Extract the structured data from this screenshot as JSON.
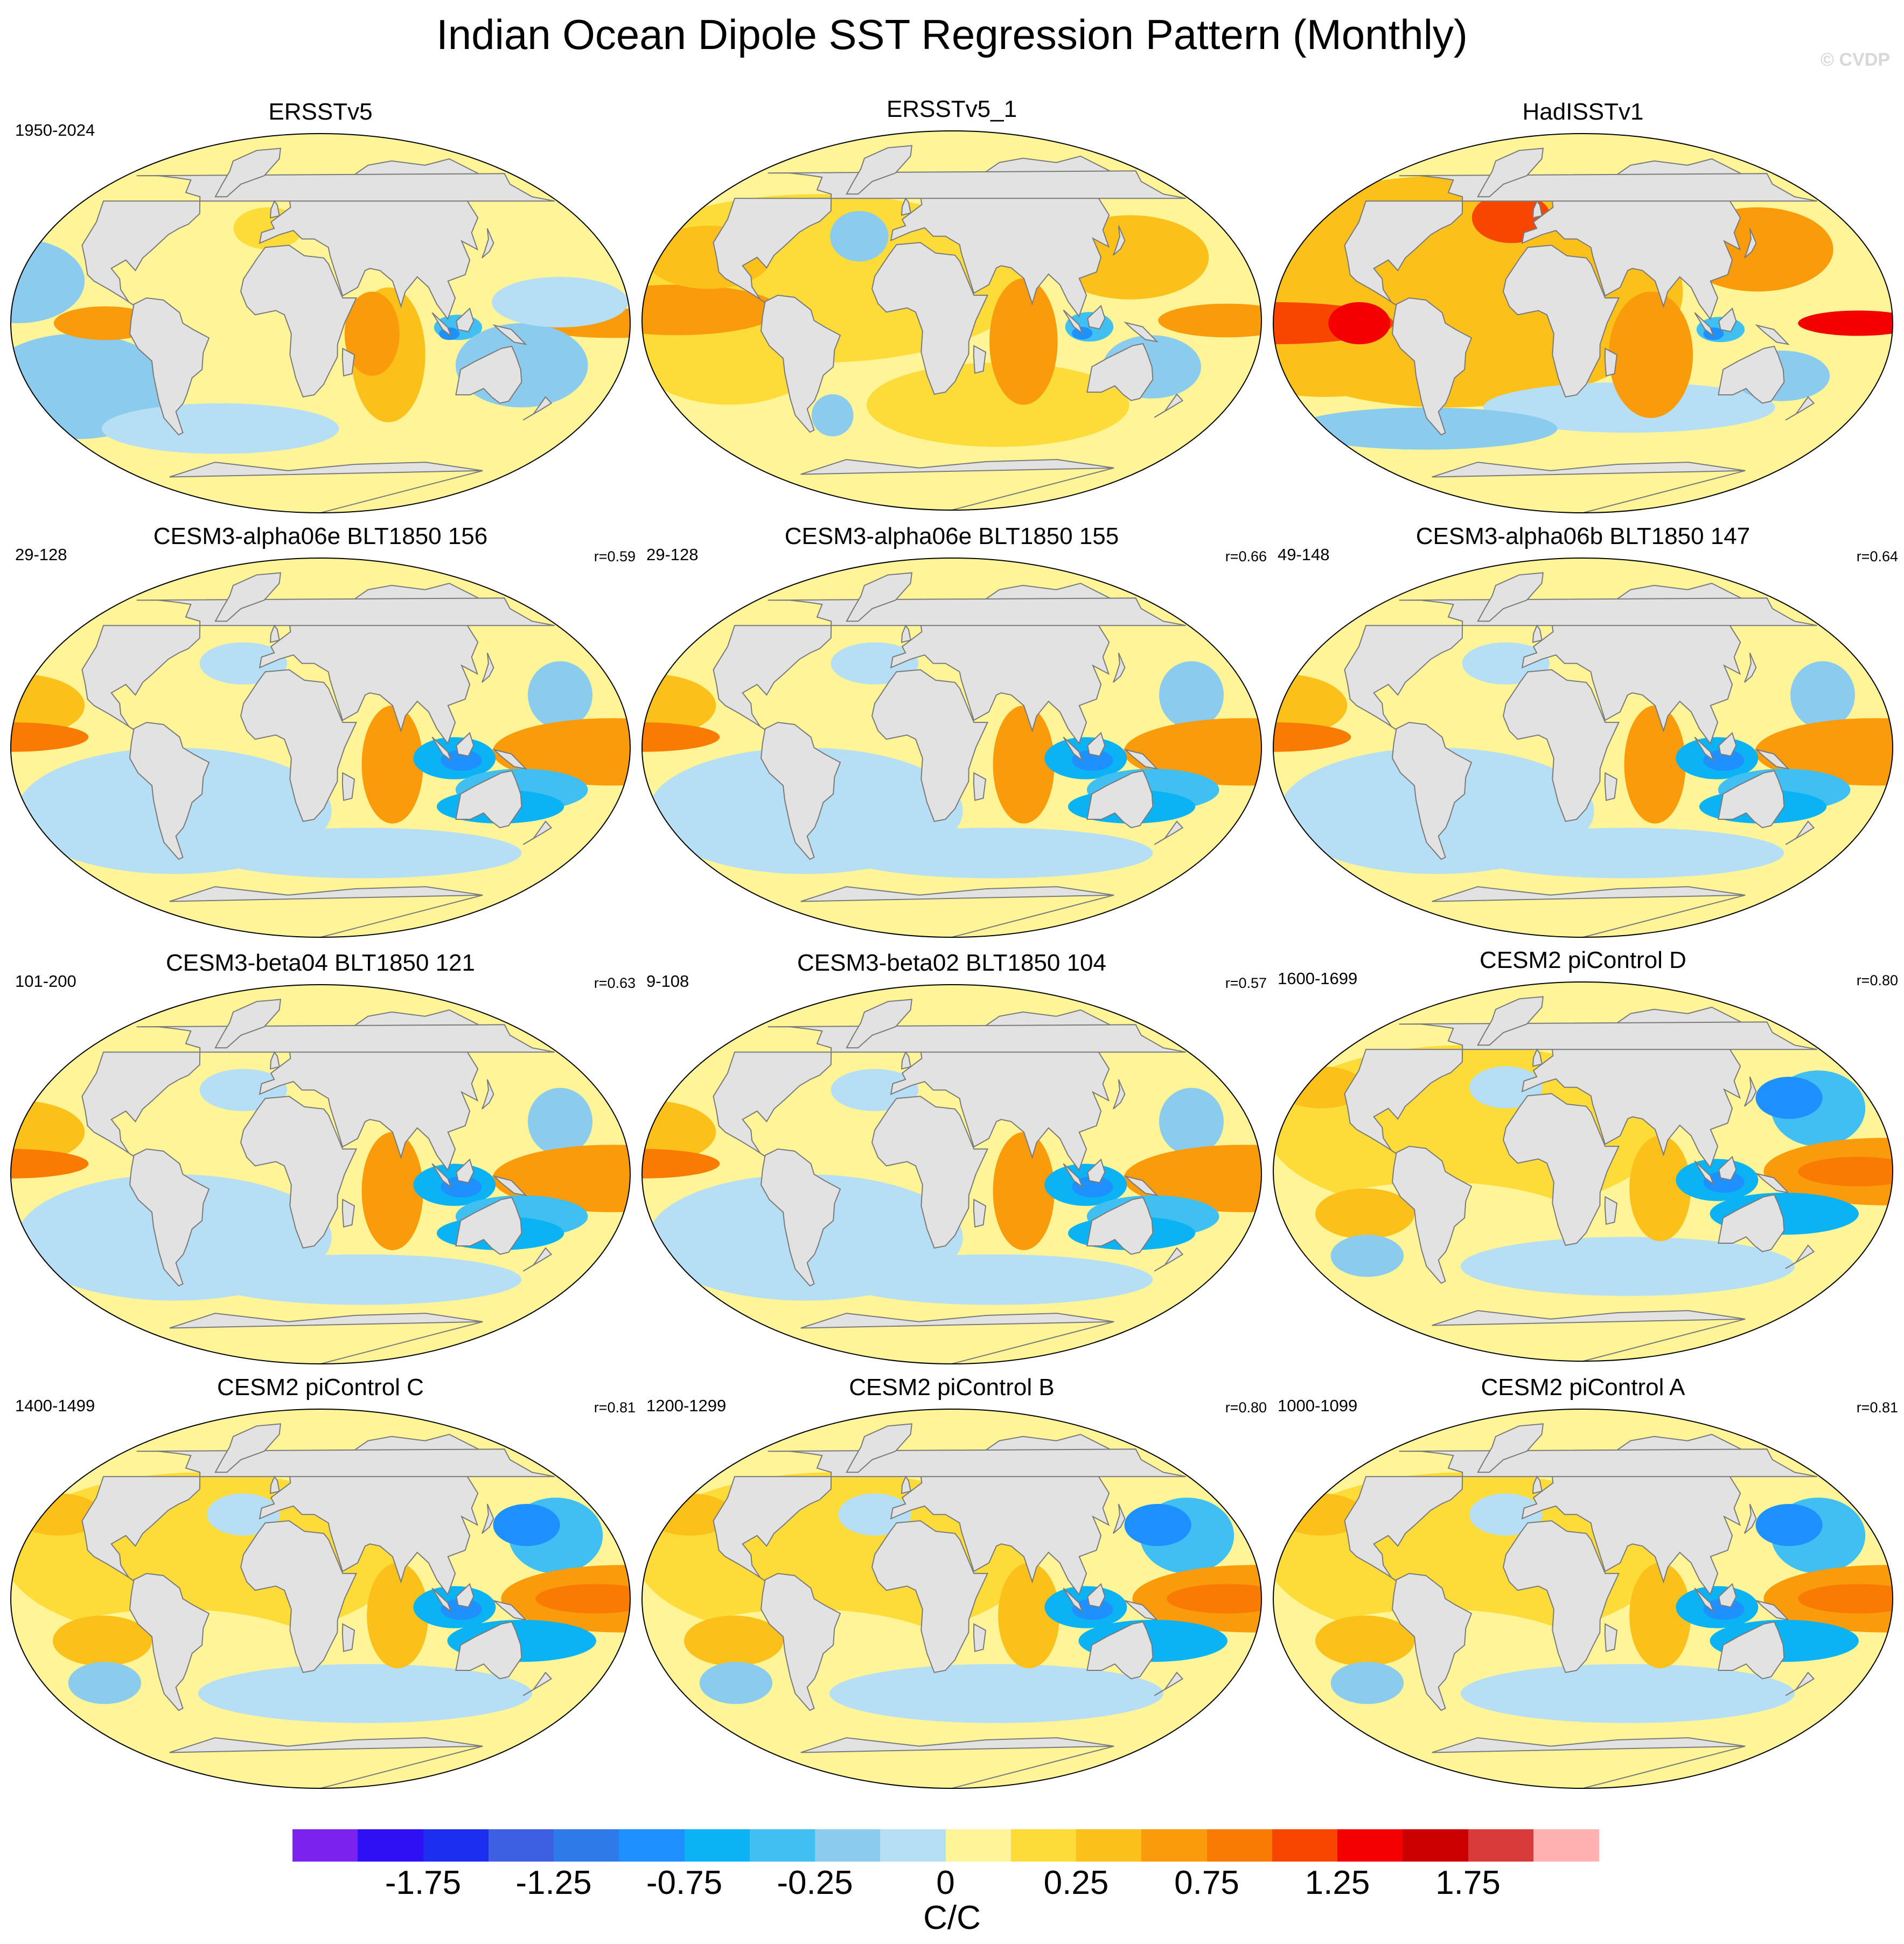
{
  "title": "Indian Ocean Dipole SST Regression Pattern (Monthly)",
  "watermark": "© CVDP",
  "colors": {
    "land": "#e2e2e2",
    "coastline": "#7a7a7a",
    "scale": [
      "#7b22ee",
      "#2f10f5",
      "#1c2ff0",
      "#3d5fe2",
      "#2e7ae9",
      "#1e90ff",
      "#0bb3f5",
      "#40bff3",
      "#8bcbee",
      "#b6def5",
      "#fff598",
      "#fddc3a",
      "#fbc019",
      "#f99b0a",
      "#f97b03",
      "#f64600",
      "#f40000",
      "#cc0000",
      "#d93b3b",
      "#ffb1b1"
    ]
  },
  "panels": [
    {
      "title": "ERSSTv5",
      "years": "1950-2024",
      "corr": ""
    },
    {
      "title": "ERSSTv5_1",
      "years": "",
      "corr": ""
    },
    {
      "title": "HadISSTv1",
      "years": "",
      "corr": ""
    },
    {
      "title": "CESM3-alpha06e BLT1850 156",
      "years": "29-128",
      "corr": "r=0.59"
    },
    {
      "title": "CESM3-alpha06e BLT1850 155",
      "years": "29-128",
      "corr": "r=0.66"
    },
    {
      "title": "CESM3-alpha06b BLT1850 147",
      "years": "49-148",
      "corr": "r=0.64"
    },
    {
      "title": "CESM3-beta04 BLT1850 121",
      "years": "101-200",
      "corr": "r=0.63"
    },
    {
      "title": "CESM3-beta02 BLT1850 104",
      "years": "9-108",
      "corr": "r=0.57"
    },
    {
      "title": "CESM2 piControl D",
      "years": "1600-1699",
      "corr": "r=0.80"
    },
    {
      "title": "CESM2 piControl C",
      "years": "1400-1499",
      "corr": "r=0.81"
    },
    {
      "title": "CESM2 piControl B",
      "years": "1200-1299",
      "corr": "r=0.80"
    },
    {
      "title": "CESM2 piControl A",
      "years": "1000-1099",
      "corr": "r=0.81"
    }
  ],
  "colorbar": {
    "ticks": [
      "-1.75",
      "-1.25",
      "-0.75",
      "-0.25",
      "0",
      "0.25",
      "0.75",
      "1.25",
      "1.75"
    ],
    "units": "C/C"
  }
}
